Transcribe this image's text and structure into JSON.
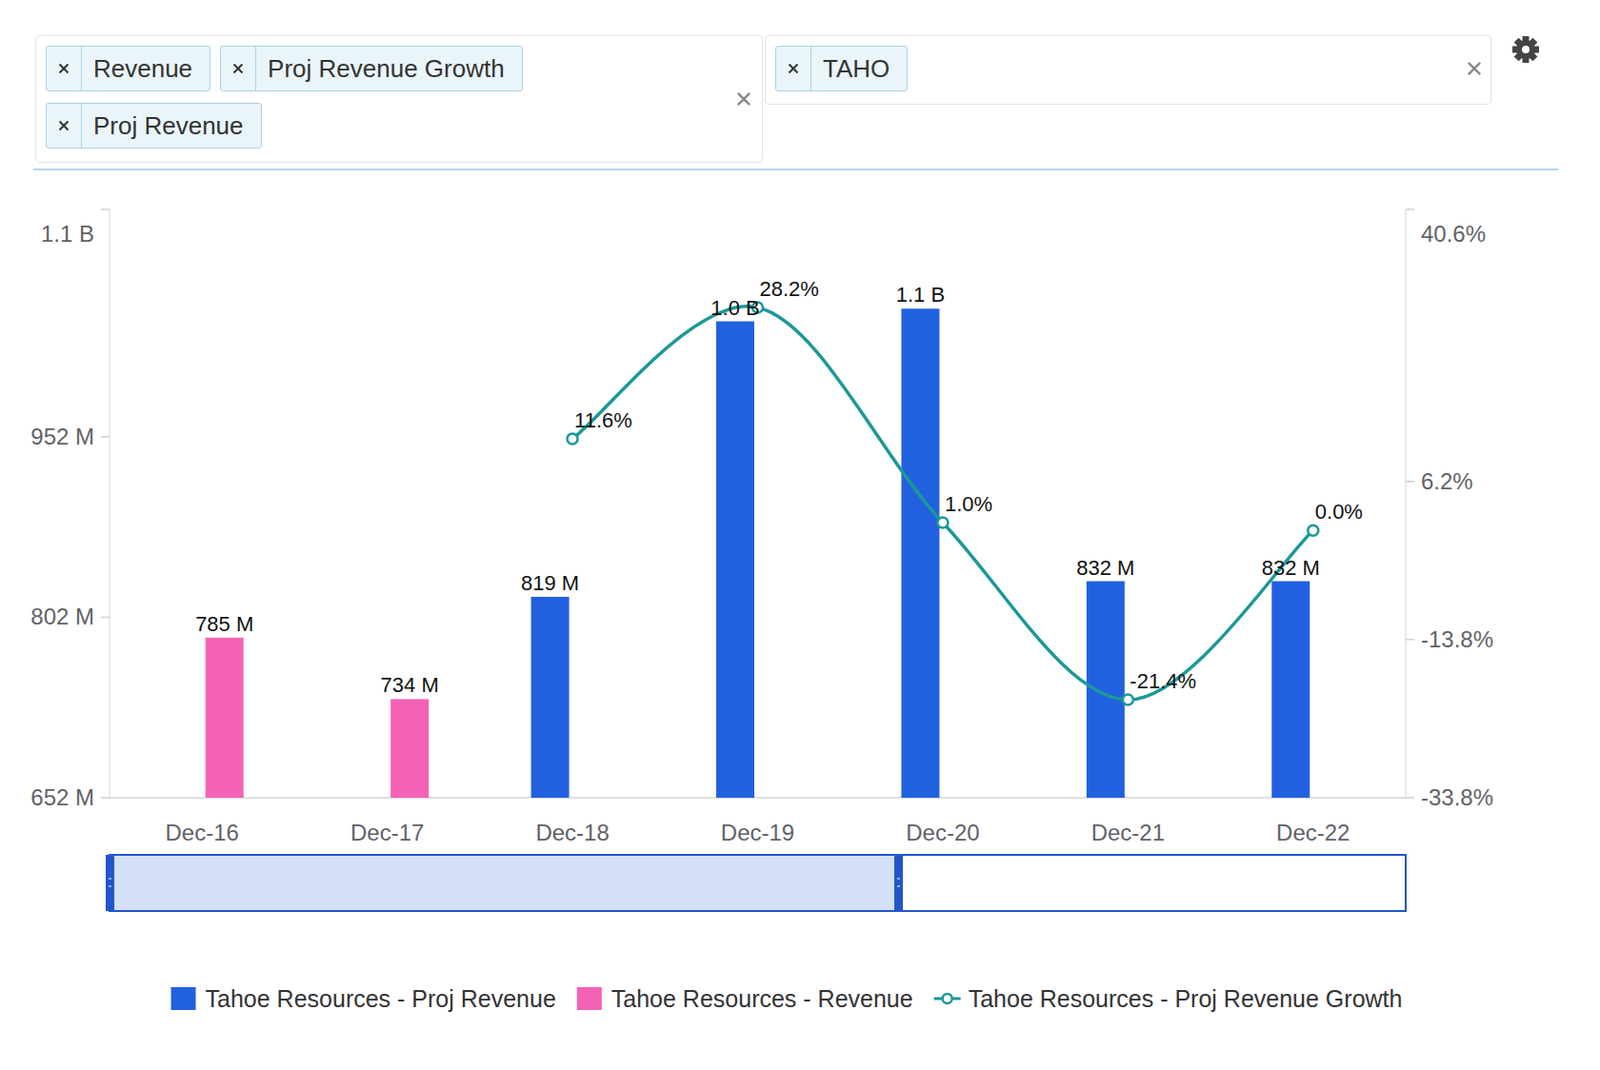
{
  "controls": {
    "metrics": [
      "Revenue",
      "Proj Revenue Growth",
      "Proj Revenue"
    ],
    "tickers": [
      "TAHO"
    ]
  },
  "chart_data": {
    "type": "bar",
    "categories": [
      "Dec-16",
      "Dec-17",
      "Dec-18",
      "Dec-19",
      "Dec-20",
      "Dec-21",
      "Dec-22"
    ],
    "ylim": [
      652,
      1141
    ],
    "yticks": [
      {
        "value": 652,
        "label": "652 M"
      },
      {
        "value": 802,
        "label": "802 M"
      },
      {
        "value": 952,
        "label": "952 M"
      },
      {
        "value": 1141,
        "label": "1.1 B"
      }
    ],
    "y2lim": [
      -33.8,
      40.6
    ],
    "y2ticks": [
      {
        "value": -33.8,
        "label": "-33.8%"
      },
      {
        "value": -13.8,
        "label": "-13.8%"
      },
      {
        "value": 6.2,
        "label": "6.2%"
      },
      {
        "value": 40.6,
        "label": "40.6%"
      }
    ],
    "grid": false,
    "legend": "bottom",
    "data_labels": true,
    "series": [
      {
        "name": "Tahoe Resources - Proj Revenue",
        "type": "bar",
        "color": "#2161e0",
        "values": [
          null,
          null,
          819,
          1048,
          1058.5,
          832,
          832
        ],
        "value_labels": [
          null,
          null,
          "819 M",
          "1.0 B",
          "1.1 B",
          "832 M",
          "832 M"
        ]
      },
      {
        "name": "Tahoe Resources - Revenue",
        "type": "bar",
        "color": "#f462b5",
        "values": [
          785,
          734,
          null,
          null,
          null,
          null,
          null
        ],
        "value_labels": [
          "785 M",
          "734 M",
          null,
          null,
          null,
          null,
          null
        ]
      },
      {
        "name": "Tahoe Resources - Proj Revenue Growth",
        "type": "line",
        "axis": "y2",
        "color": "#1b9898",
        "marker": "circle",
        "values": [
          null,
          null,
          11.6,
          28.2,
          1.0,
          -21.4,
          0.0
        ],
        "value_labels": [
          null,
          null,
          "11.6%",
          "28.2%",
          "1.0%",
          "-21.4%",
          "0.0%"
        ]
      }
    ]
  }
}
